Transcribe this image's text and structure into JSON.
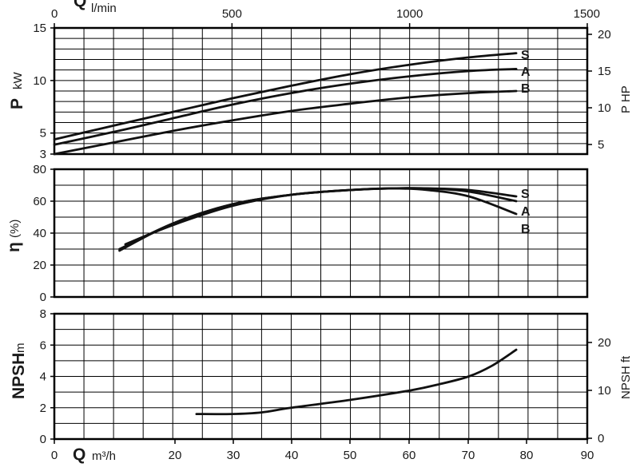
{
  "chart_data": [
    {
      "type": "line",
      "id": "power",
      "y_label_main": "P",
      "y_label_unit": "kW",
      "y_right_label": "P HP",
      "top_axis": {
        "label_main": "Q",
        "label_unit": "l/min",
        "ticks": [
          "0",
          "500",
          "1000",
          "1500"
        ],
        "range": [
          0,
          1500
        ]
      },
      "x_range": [
        0,
        90
      ],
      "ylim": [
        3,
        15
      ],
      "y_ticks": [
        "3",
        "5",
        "10",
        "15"
      ],
      "y_right_ticks": [
        "5",
        "10",
        "15",
        "20"
      ],
      "grid": true,
      "series": [
        {
          "name": "S",
          "x": [
            0,
            10,
            20,
            30,
            40,
            50,
            60,
            70,
            78
          ],
          "y": [
            4.4,
            5.7,
            7.0,
            8.3,
            9.5,
            10.6,
            11.5,
            12.2,
            12.6
          ]
        },
        {
          "name": "A",
          "x": [
            0,
            10,
            20,
            30,
            40,
            50,
            60,
            70,
            78
          ],
          "y": [
            3.9,
            5.1,
            6.4,
            7.7,
            8.8,
            9.7,
            10.4,
            10.9,
            11.1
          ]
        },
        {
          "name": "B",
          "x": [
            0,
            10,
            20,
            30,
            40,
            50,
            60,
            70,
            78
          ],
          "y": [
            3.0,
            4.1,
            5.2,
            6.2,
            7.1,
            7.8,
            8.4,
            8.8,
            9.0
          ]
        }
      ]
    },
    {
      "type": "line",
      "id": "efficiency",
      "y_label_main": "η",
      "y_label_unit": "(%)",
      "x_range": [
        0,
        90
      ],
      "ylim": [
        0,
        80
      ],
      "y_ticks": [
        "0",
        "20",
        "40",
        "60",
        "80"
      ],
      "grid": true,
      "series": [
        {
          "name": "S",
          "x": [
            12,
            20,
            30,
            40,
            50,
            57,
            63,
            70,
            78
          ],
          "y": [
            33,
            45,
            57,
            64,
            67,
            68,
            68,
            67,
            63
          ]
        },
        {
          "name": "A",
          "x": [
            11,
            20,
            30,
            40,
            50,
            57,
            63,
            70,
            78
          ],
          "y": [
            30,
            46,
            58,
            64,
            67,
            68,
            68,
            66,
            60
          ]
        },
        {
          "name": "B",
          "x": [
            11,
            20,
            30,
            40,
            50,
            57,
            63,
            70,
            78
          ],
          "y": [
            29,
            46,
            58,
            64,
            67,
            68,
            67,
            63,
            52
          ]
        }
      ]
    },
    {
      "type": "line",
      "id": "npsh",
      "y_label_main": "NPSH",
      "y_label_unit": "m",
      "y_right_label": "NPSH ft",
      "bottom_axis": {
        "label_main": "Q",
        "label_unit": "m³/h",
        "ticks": [
          "0",
          "20",
          "30",
          "40",
          "50",
          "60",
          "70",
          "80",
          "90"
        ]
      },
      "x_range": [
        0,
        90
      ],
      "ylim": [
        0,
        8
      ],
      "y_ticks": [
        "0",
        "2",
        "4",
        "6",
        "8"
      ],
      "y_right_ticks": [
        "0",
        "10",
        "20"
      ],
      "grid": true,
      "series": [
        {
          "x": [
            24,
            30,
            35,
            40,
            50,
            60,
            65,
            70,
            74,
            78
          ],
          "y": [
            1.6,
            1.6,
            1.7,
            2.0,
            2.5,
            3.1,
            3.5,
            4.0,
            4.7,
            5.7
          ]
        }
      ]
    }
  ]
}
